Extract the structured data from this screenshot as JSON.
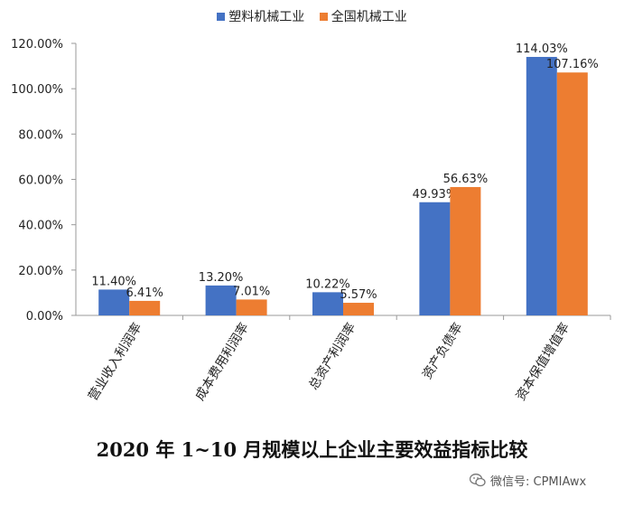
{
  "chart_data": {
    "type": "bar",
    "title": "2020 年 1~10 月规模以上企业主要效益指标比较",
    "categories": [
      "营业收入利润率",
      "成本费用利润率",
      "总资产利润率",
      "资产负债率",
      "资本保值增值率"
    ],
    "series": [
      {
        "name": "塑料机械工业",
        "values": [
          11.4,
          13.2,
          10.22,
          49.93,
          114.03
        ],
        "labels": [
          "11.40%",
          "13.20%",
          "10.22%",
          "49.93%",
          "114.03%"
        ],
        "color": "#4472C4"
      },
      {
        "name": "全国机械工业",
        "values": [
          6.41,
          7.01,
          5.57,
          56.63,
          107.16
        ],
        "labels": [
          "6.41%",
          "7.01%",
          "5.57%",
          "56.63%",
          "107.16%"
        ],
        "color": "#ED7D31"
      }
    ],
    "yticks": [
      "0.00%",
      "20.00%",
      "40.00%",
      "60.00%",
      "80.00%",
      "100.00%",
      "120.00%"
    ],
    "ylim": [
      0,
      120
    ],
    "grid": false,
    "legend_position": "top"
  },
  "watermark": {
    "text": "微信号: CPMIAwx",
    "icon": "wechat-icon"
  }
}
